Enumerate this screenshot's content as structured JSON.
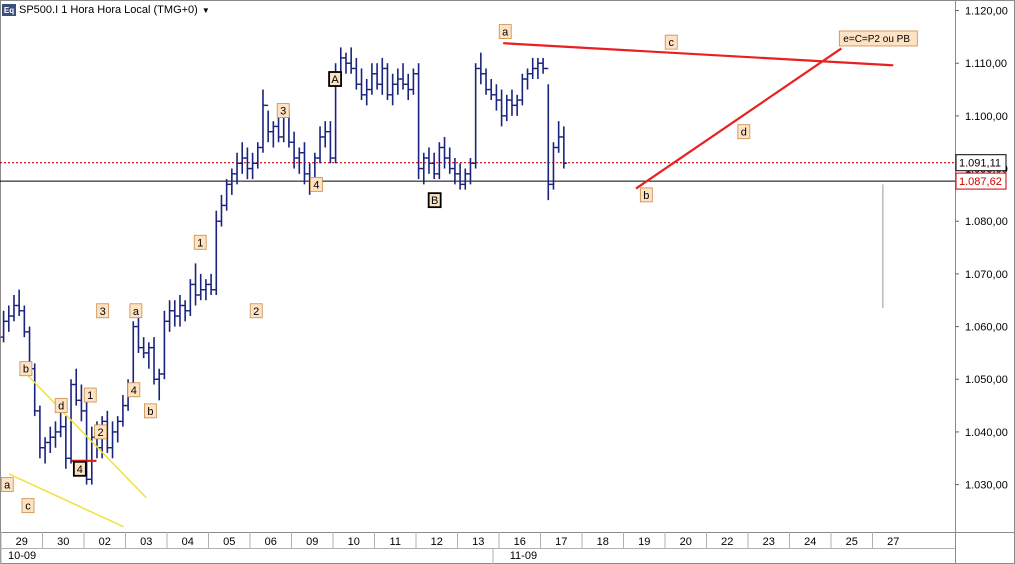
{
  "header": {
    "logo": "Eq",
    "title": "SP500.I 1 Hora Hora Local (TMG+0)",
    "dropdown_icon": "chevron-down-icon"
  },
  "chart_data": {
    "type": "ohlc",
    "title": "SP500.I 1 Hora Hora Local (TMG+0)",
    "ylim": [
      1021,
      1122
    ],
    "yticks": [
      "1.030,00",
      "1.040,00",
      "1.050,00",
      "1.060,00",
      "1.070,00",
      "1.080,00",
      "1.090,00",
      "1.100,00",
      "1.110,00",
      "1.120,00"
    ],
    "ytick_values": [
      1030,
      1040,
      1050,
      1060,
      1070,
      1080,
      1090,
      1100,
      1110,
      1120
    ],
    "xticks": [
      "29",
      "30",
      "02",
      "03",
      "04",
      "05",
      "06",
      "09",
      "10",
      "11",
      "12",
      "13",
      "16",
      "17",
      "18",
      "19",
      "20",
      "22",
      "23",
      "24",
      "25",
      "27"
    ],
    "month_labels": [
      {
        "label": "10-09",
        "index": 0
      },
      {
        "label": "11-09",
        "index": 12
      }
    ],
    "last_price_label": "1.091,11",
    "last_price": 1091.11,
    "ref_price_label": "1.087,62",
    "ref_price": 1087.62,
    "wave_labels": [
      {
        "text": "b",
        "boxed": false,
        "x": 0.1,
        "y": 1052
      },
      {
        "text": "a",
        "boxed": false,
        "x": -0.35,
        "y": 1030
      },
      {
        "text": "c",
        "boxed": false,
        "x": 0.15,
        "y": 1026
      },
      {
        "text": "d",
        "boxed": false,
        "x": 0.95,
        "y": 1045
      },
      {
        "text": "1",
        "boxed": false,
        "x": 1.65,
        "y": 1047
      },
      {
        "text": "2",
        "boxed": false,
        "x": 1.9,
        "y": 1040
      },
      {
        "text": "4",
        "boxed": true,
        "x": 1.4,
        "y": 1033
      },
      {
        "text": "3",
        "boxed": false,
        "x": 1.95,
        "y": 1063
      },
      {
        "text": "a",
        "boxed": false,
        "x": 2.75,
        "y": 1063
      },
      {
        "text": "4",
        "boxed": false,
        "x": 2.7,
        "y": 1048
      },
      {
        "text": "b",
        "boxed": false,
        "x": 3.1,
        "y": 1044
      },
      {
        "text": "1",
        "boxed": false,
        "x": 4.3,
        "y": 1076
      },
      {
        "text": "2",
        "boxed": false,
        "x": 5.65,
        "y": 1063
      },
      {
        "text": "3",
        "boxed": false,
        "x": 6.3,
        "y": 1101
      },
      {
        "text": "4",
        "boxed": false,
        "x": 7.1,
        "y": 1087
      },
      {
        "text": "A",
        "boxed": true,
        "x": 7.55,
        "y": 1107
      },
      {
        "text": "B",
        "boxed": true,
        "x": 9.95,
        "y": 1084
      },
      {
        "text": "a",
        "boxed": false,
        "x": 11.65,
        "y": 1116
      },
      {
        "text": "c",
        "boxed": false,
        "x": 15.65,
        "y": 1114
      },
      {
        "text": "b",
        "boxed": false,
        "x": 15.05,
        "y": 1085
      },
      {
        "text": "d",
        "boxed": false,
        "x": 17.4,
        "y": 1097
      }
    ],
    "annotation": {
      "text": "e=C=P2 ou PB",
      "x": 19.7,
      "y": 1114.6
    },
    "trendlines": [
      {
        "color": "#e82020",
        "x1": 11.6,
        "y1": 1113.8,
        "x2": 21.0,
        "y2": 1109.6
      },
      {
        "color": "#e82020",
        "x1": 14.8,
        "y1": 1086.2,
        "x2": 19.75,
        "y2": 1112.8
      },
      {
        "color": "#e82020",
        "x1": 1.2,
        "y1": 1034.5,
        "x2": 1.8,
        "y2": 1034.5
      },
      {
        "color": "#f0e040",
        "x1": 0.05,
        "y1": 1051.5,
        "x2": 3.0,
        "y2": 1027.5
      },
      {
        "color": "#f0e040",
        "x1": -0.3,
        "y1": 1032,
        "x2": 2.45,
        "y2": 1022
      }
    ],
    "vertical_marker": {
      "x": 20.75,
      "y_top": 1087,
      "y_bottom": 1063.5
    },
    "bars": [
      [
        1058,
        1063,
        1057,
        1061
      ],
      [
        1061,
        1064,
        1059,
        1062
      ],
      [
        1062,
        1066,
        1061,
        1064
      ],
      [
        1064,
        1067,
        1062,
        1063
      ],
      [
        1063,
        1064,
        1058,
        1059
      ],
      [
        1059,
        1060,
        1051,
        1052
      ],
      [
        1052,
        1053,
        1043,
        1044
      ],
      [
        1044,
        1045,
        1035,
        1037
      ],
      [
        1037,
        1039,
        1034,
        1038
      ],
      [
        1038,
        1041,
        1036,
        1039
      ],
      [
        1039,
        1042,
        1037,
        1040
      ],
      [
        1040,
        1045,
        1039,
        1041
      ],
      [
        1041,
        1043,
        1033,
        1035
      ],
      [
        1035,
        1050,
        1034,
        1049
      ],
      [
        1049,
        1052,
        1045,
        1046
      ],
      [
        1046,
        1049,
        1042,
        1044
      ],
      [
        1044,
        1046,
        1030,
        1031
      ],
      [
        1031,
        1041,
        1030,
        1039
      ],
      [
        1039,
        1042,
        1035,
        1037
      ],
      [
        1037,
        1043,
        1035,
        1042
      ],
      [
        1042,
        1044,
        1036,
        1037
      ],
      [
        1037,
        1042,
        1035,
        1040
      ],
      [
        1040,
        1043,
        1038,
        1042
      ],
      [
        1042,
        1047,
        1041,
        1045
      ],
      [
        1045,
        1050,
        1044,
        1049
      ],
      [
        1049,
        1061,
        1048,
        1060
      ],
      [
        1060,
        1062,
        1055,
        1056
      ],
      [
        1056,
        1058,
        1054,
        1055
      ],
      [
        1055,
        1057,
        1052,
        1056
      ],
      [
        1056,
        1058,
        1049,
        1050
      ],
      [
        1050,
        1052,
        1046,
        1051
      ],
      [
        1051,
        1063,
        1050,
        1061
      ],
      [
        1061,
        1065,
        1059,
        1063
      ],
      [
        1063,
        1065,
        1060,
        1062
      ],
      [
        1062,
        1066,
        1060,
        1064
      ],
      [
        1064,
        1065,
        1061,
        1063
      ],
      [
        1063,
        1069,
        1062,
        1068
      ],
      [
        1068,
        1072,
        1064,
        1066
      ],
      [
        1066,
        1070,
        1065,
        1067
      ],
      [
        1067,
        1069,
        1065,
        1068
      ],
      [
        1068,
        1070,
        1066,
        1067
      ],
      [
        1067,
        1082,
        1066,
        1080
      ],
      [
        1080,
        1085,
        1079,
        1083
      ],
      [
        1083,
        1088,
        1082,
        1087
      ],
      [
        1087,
        1090,
        1085,
        1089
      ],
      [
        1089,
        1093,
        1087,
        1091
      ],
      [
        1091,
        1095,
        1089,
        1092
      ],
      [
        1092,
        1094,
        1088,
        1090
      ],
      [
        1090,
        1093,
        1088,
        1091
      ],
      [
        1091,
        1095,
        1090,
        1094
      ],
      [
        1094,
        1105,
        1093,
        1102
      ],
      [
        1102,
        1101,
        1095,
        1097
      ],
      [
        1097,
        1099,
        1094,
        1098
      ],
      [
        1098,
        1100,
        1095,
        1096
      ],
      [
        1096,
        1102,
        1095,
        1100
      ],
      [
        1100,
        1101,
        1094,
        1095
      ],
      [
        1095,
        1097,
        1090,
        1092
      ],
      [
        1092,
        1094,
        1089,
        1093
      ],
      [
        1093,
        1095,
        1087,
        1089
      ],
      [
        1089,
        1091,
        1085,
        1087
      ],
      [
        1087,
        1093,
        1086,
        1092
      ],
      [
        1092,
        1098,
        1091,
        1096
      ],
      [
        1096,
        1099,
        1094,
        1097
      ],
      [
        1097,
        1099,
        1091,
        1092
      ],
      [
        1092,
        1110,
        1091,
        1108
      ],
      [
        1108,
        1113,
        1106,
        1111
      ],
      [
        1111,
        1112,
        1108,
        1110
      ],
      [
        1110,
        1113,
        1108,
        1109
      ],
      [
        1109,
        1111,
        1105,
        1106
      ],
      [
        1106,
        1109,
        1103,
        1104
      ],
      [
        1104,
        1107,
        1102,
        1105
      ],
      [
        1105,
        1110,
        1104,
        1108
      ],
      [
        1108,
        1110,
        1105,
        1106
      ],
      [
        1106,
        1111,
        1104,
        1109
      ],
      [
        1109,
        1110,
        1103,
        1104
      ],
      [
        1104,
        1108,
        1102,
        1106
      ],
      [
        1106,
        1109,
        1104,
        1107
      ],
      [
        1107,
        1110,
        1105,
        1106
      ],
      [
        1106,
        1108,
        1103,
        1105
      ],
      [
        1105,
        1109,
        1104,
        1108
      ],
      [
        1108,
        1110,
        1088,
        1090
      ],
      [
        1090,
        1093,
        1087,
        1092
      ],
      [
        1092,
        1094,
        1089,
        1091
      ],
      [
        1091,
        1093,
        1088,
        1089
      ],
      [
        1089,
        1095,
        1088,
        1094
      ],
      [
        1094,
        1096,
        1090,
        1092
      ],
      [
        1092,
        1094,
        1089,
        1090
      ],
      [
        1090,
        1092,
        1087,
        1089
      ],
      [
        1089,
        1091,
        1086,
        1087
      ],
      [
        1087,
        1090,
        1086,
        1089
      ],
      [
        1089,
        1092,
        1087,
        1091
      ],
      [
        1091,
        1110,
        1090,
        1109
      ],
      [
        1109,
        1112,
        1106,
        1108
      ],
      [
        1108,
        1109,
        1104,
        1105
      ],
      [
        1105,
        1107,
        1103,
        1104
      ],
      [
        1104,
        1106,
        1101,
        1103
      ],
      [
        1103,
        1105,
        1098,
        1100
      ],
      [
        1100,
        1104,
        1099,
        1103
      ],
      [
        1103,
        1105,
        1100,
        1102
      ],
      [
        1102,
        1104,
        1100,
        1103
      ],
      [
        1103,
        1108,
        1102,
        1107
      ],
      [
        1107,
        1109,
        1105,
        1108
      ],
      [
        1108,
        1111,
        1107,
        1109
      ],
      [
        1109,
        1111,
        1107,
        1110
      ],
      [
        1110,
        1111,
        1108,
        1109
      ],
      [
        1109,
        1106,
        1084,
        1087
      ],
      [
        1087,
        1095,
        1086,
        1094
      ],
      [
        1094,
        1099,
        1093,
        1096
      ],
      [
        1096,
        1098,
        1090,
        1091
      ]
    ]
  }
}
